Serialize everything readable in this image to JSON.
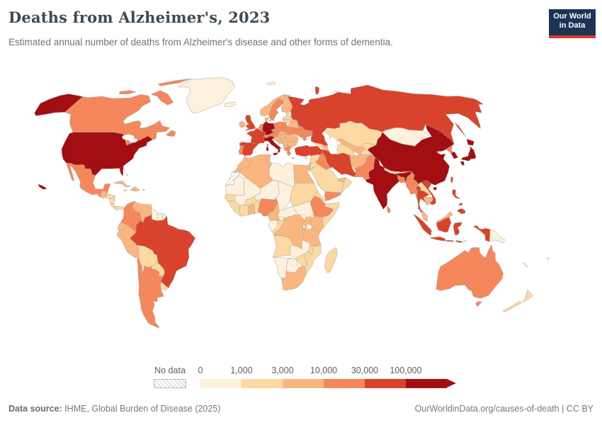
{
  "header": {
    "title": "Deaths from Alzheimer's, 2023",
    "subtitle": "Estimated annual number of deaths from Alzheimer's disease and other forms of dementia."
  },
  "logo": {
    "line1": "Our World",
    "line2": "in Data"
  },
  "legend": {
    "no_data_label": "No data",
    "tick_labels": [
      "0",
      "1,000",
      "3,000",
      "10,000",
      "30,000",
      "100,000"
    ]
  },
  "footer": {
    "source_label": "Data source:",
    "source_text": " IHME, Global Burden of Disease (2025)",
    "right_text": "OurWorldinData.org/causes-of-death | CC BY"
  },
  "chart_data": {
    "type": "choropleth",
    "title": "Deaths from Alzheimer's, 2023",
    "metric": "Estimated annual number of deaths from Alzheimer's disease and other forms of dementia",
    "year": 2023,
    "legend_position": "bottom",
    "bins": [
      {
        "range": "0–1,000",
        "color": "#fdf0dd"
      },
      {
        "range": "1,000–3,000",
        "color": "#fcd9a3"
      },
      {
        "range": "3,000–10,000",
        "color": "#fab67f"
      },
      {
        "range": "10,000–30,000",
        "color": "#f5875c"
      },
      {
        "range": "30,000–100,000",
        "color": "#d8432d"
      },
      {
        "range": "100,000+",
        "color": "#a30e13"
      }
    ],
    "countries": {
      "united-states": {
        "name": "United States",
        "bin": 5
      },
      "canada": {
        "name": "Canada",
        "bin": 3
      },
      "greenland": {
        "name": "Greenland",
        "bin": 0
      },
      "mexico": {
        "name": "Mexico",
        "bin": 3
      },
      "guatemala": {
        "name": "Guatemala",
        "bin": 2
      },
      "honduras": {
        "name": "Honduras",
        "bin": 1
      },
      "nicaragua": {
        "name": "Nicaragua",
        "bin": 1
      },
      "costa-rica": {
        "name": "Costa Rica",
        "bin": 1
      },
      "panama": {
        "name": "Panama",
        "bin": 1
      },
      "cuba": {
        "name": "Cuba",
        "bin": 2
      },
      "hispaniola": {
        "name": "Haiti / Dominican Republic",
        "bin": 2
      },
      "jamaica": {
        "name": "Jamaica",
        "bin": 1
      },
      "puerto-rico": {
        "name": "Puerto Rico",
        "bin": 2
      },
      "bahamas": {
        "name": "Bahamas",
        "bin": 1
      },
      "trinidad": {
        "name": "Trinidad and Tobago",
        "bin": 2
      },
      "colombia": {
        "name": "Colombia",
        "bin": 3
      },
      "venezuela": {
        "name": "Venezuela",
        "bin": 2
      },
      "guyana": {
        "name": "Guyana",
        "bin": 0
      },
      "suriname": {
        "name": "Suriname",
        "bin": 0
      },
      "french-guiana": {
        "name": "French Guiana",
        "bin": 0
      },
      "ecuador": {
        "name": "Ecuador",
        "bin": 2
      },
      "peru": {
        "name": "Peru",
        "bin": 2
      },
      "brazil": {
        "name": "Brazil",
        "bin": 4
      },
      "bolivia": {
        "name": "Bolivia",
        "bin": 1
      },
      "paraguay": {
        "name": "Paraguay",
        "bin": 1
      },
      "uruguay": {
        "name": "Uruguay",
        "bin": 1
      },
      "argentina": {
        "name": "Argentina",
        "bin": 3
      },
      "chile": {
        "name": "Chile",
        "bin": 3
      },
      "iceland": {
        "name": "Iceland",
        "bin": 0
      },
      "united-kingdom": {
        "name": "United Kingdom",
        "bin": 4
      },
      "ireland": {
        "name": "Ireland",
        "bin": 2
      },
      "norway": {
        "name": "Norway",
        "bin": 2
      },
      "sweden": {
        "name": "Sweden",
        "bin": 3
      },
      "finland": {
        "name": "Finland",
        "bin": 2
      },
      "denmark": {
        "name": "Denmark",
        "bin": 2
      },
      "estonia": {
        "name": "Estonia",
        "bin": 1
      },
      "latvia": {
        "name": "Latvia",
        "bin": 1
      },
      "lithuania": {
        "name": "Lithuania",
        "bin": 1
      },
      "poland": {
        "name": "Poland",
        "bin": 3
      },
      "germany": {
        "name": "Germany",
        "bin": 5
      },
      "netherlands": {
        "name": "Netherlands",
        "bin": 3
      },
      "belgium": {
        "name": "Belgium",
        "bin": 3
      },
      "france": {
        "name": "France",
        "bin": 4
      },
      "spain": {
        "name": "Spain",
        "bin": 4
      },
      "portugal": {
        "name": "Portugal",
        "bin": 3
      },
      "italy": {
        "name": "Italy",
        "bin": 5
      },
      "switzerland": {
        "name": "Switzerland",
        "bin": 3
      },
      "austria": {
        "name": "Austria",
        "bin": 3
      },
      "czechia": {
        "name": "Czechia",
        "bin": 3
      },
      "slovakia": {
        "name": "Slovakia",
        "bin": 2
      },
      "hungary": {
        "name": "Hungary",
        "bin": 2
      },
      "croatia": {
        "name": "Croatia",
        "bin": 2
      },
      "bosnia": {
        "name": "Bosnia and Herzegovina",
        "bin": 2
      },
      "serbia": {
        "name": "Serbia",
        "bin": 2
      },
      "albania-macedonia": {
        "name": "Albania / North Macedonia",
        "bin": 2
      },
      "greece": {
        "name": "Greece",
        "bin": 3
      },
      "bulgaria": {
        "name": "Bulgaria",
        "bin": 2
      },
      "romania": {
        "name": "Romania",
        "bin": 2
      },
      "ukraine": {
        "name": "Ukraine",
        "bin": 3
      },
      "moldova": {
        "name": "Moldova",
        "bin": 1
      },
      "belarus": {
        "name": "Belarus",
        "bin": 2
      },
      "russia": {
        "name": "Russia",
        "bin": 4
      },
      "svalbard": {
        "name": "Svalbard",
        "bin": 0
      },
      "georgia": {
        "name": "Georgia",
        "bin": 1
      },
      "armenia": {
        "name": "Armenia",
        "bin": 1
      },
      "azerbaijan": {
        "name": "Azerbaijan",
        "bin": 2
      },
      "turkey": {
        "name": "Turkey",
        "bin": 4
      },
      "syria": {
        "name": "Syria",
        "bin": 1
      },
      "jordan": {
        "name": "Jordan",
        "bin": 1
      },
      "israel": {
        "name": "Israel",
        "bin": 2
      },
      "iraq": {
        "name": "Iraq",
        "bin": 3
      },
      "iran": {
        "name": "Iran",
        "bin": 4
      },
      "saudi-arabia": {
        "name": "Saudi Arabia",
        "bin": 1
      },
      "yemen": {
        "name": "Yemen",
        "bin": 3
      },
      "oman": {
        "name": "Oman",
        "bin": 1
      },
      "uae": {
        "name": "United Arab Emirates",
        "bin": 2
      },
      "cyprus": {
        "name": "Cyprus",
        "bin": 1
      },
      "kazakhstan": {
        "name": "Kazakhstan",
        "bin": 1
      },
      "uzbekistan": {
        "name": "Uzbekistan",
        "bin": 2
      },
      "turkmenistan": {
        "name": "Turkmenistan",
        "bin": 1
      },
      "kyrgyzstan": {
        "name": "Kyrgyzstan",
        "bin": 1
      },
      "tajikistan": {
        "name": "Tajikistan",
        "bin": 1
      },
      "afghanistan": {
        "name": "Afghanistan",
        "bin": 2
      },
      "pakistan": {
        "name": "Pakistan",
        "bin": 3
      },
      "india": {
        "name": "India",
        "bin": 5
      },
      "nepal": {
        "name": "Nepal",
        "bin": 1
      },
      "bangladesh": {
        "name": "Bangladesh",
        "bin": 3
      },
      "sri-lanka": {
        "name": "Sri Lanka",
        "bin": 3
      },
      "china": {
        "name": "China",
        "bin": 5
      },
      "mongolia": {
        "name": "Mongolia",
        "bin": 0
      },
      "north-korea": {
        "name": "North Korea",
        "bin": 3
      },
      "south-korea": {
        "name": "South Korea",
        "bin": 5
      },
      "japan": {
        "name": "Japan",
        "bin": 5
      },
      "taiwan": {
        "name": "Taiwan",
        "bin": 4
      },
      "myanmar": {
        "name": "Myanmar",
        "bin": 3
      },
      "thailand": {
        "name": "Thailand",
        "bin": 4
      },
      "laos": {
        "name": "Laos",
        "bin": 1
      },
      "vietnam": {
        "name": "Vietnam",
        "bin": 4
      },
      "cambodia": {
        "name": "Cambodia",
        "bin": 2
      },
      "malaysia": {
        "name": "Malaysia",
        "bin": 2
      },
      "indonesia": {
        "name": "Indonesia",
        "bin": 4
      },
      "timor-leste": {
        "name": "Timor-Leste",
        "bin": 0
      },
      "philippines": {
        "name": "Philippines",
        "bin": 4
      },
      "papua-new-guinea": {
        "name": "Papua New Guinea",
        "bin": 0
      },
      "morocco": {
        "name": "Morocco",
        "bin": 2
      },
      "western-sahara": {
        "name": "Western Sahara",
        "bin": "nodata"
      },
      "algeria": {
        "name": "Algeria",
        "bin": 2
      },
      "tunisia": {
        "name": "Tunisia",
        "bin": 2
      },
      "libya": {
        "name": "Libya",
        "bin": 0
      },
      "egypt": {
        "name": "Egypt",
        "bin": 2
      },
      "sudan": {
        "name": "Sudan",
        "bin": 1
      },
      "south-sudan": {
        "name": "South Sudan",
        "bin": 0
      },
      "eritrea": {
        "name": "Eritrea / Djibouti",
        "bin": 1
      },
      "ethiopia": {
        "name": "Ethiopia",
        "bin": 3
      },
      "somalia": {
        "name": "Somalia",
        "bin": 1
      },
      "kenya": {
        "name": "Kenya",
        "bin": 2
      },
      "uganda": {
        "name": "Uganda",
        "bin": 2
      },
      "tanzania": {
        "name": "Tanzania",
        "bin": 2
      },
      "rwanda-burundi": {
        "name": "Rwanda / Burundi",
        "bin": 2
      },
      "dr-congo": {
        "name": "Democratic Republic of Congo",
        "bin": 2
      },
      "central-african-republic": {
        "name": "Central African Republic",
        "bin": 0
      },
      "chad": {
        "name": "Chad",
        "bin": 0
      },
      "niger": {
        "name": "Niger",
        "bin": 0
      },
      "mali": {
        "name": "Mali",
        "bin": 0
      },
      "mauritania": {
        "name": "Mauritania",
        "bin": 0
      },
      "senegal": {
        "name": "Senegal",
        "bin": 1
      },
      "guinea": {
        "name": "Guinea / Sierra Leone / Liberia",
        "bin": 1
      },
      "ivory-coast": {
        "name": "Cote d'Ivoire",
        "bin": 1
      },
      "ghana": {
        "name": "Ghana",
        "bin": 2
      },
      "benin-togo": {
        "name": "Benin / Togo",
        "bin": 1
      },
      "burkina-faso": {
        "name": "Burkina Faso",
        "bin": 1
      },
      "nigeria": {
        "name": "Nigeria",
        "bin": 3
      },
      "cameroon": {
        "name": "Cameroon",
        "bin": 2
      },
      "gabon": {
        "name": "Gabon",
        "bin": 0
      },
      "congo": {
        "name": "Congo",
        "bin": 1
      },
      "angola": {
        "name": "Angola",
        "bin": 1
      },
      "zambia": {
        "name": "Zambia",
        "bin": 0
      },
      "malawi": {
        "name": "Malawi",
        "bin": 1
      },
      "mozambique": {
        "name": "Mozambique",
        "bin": 1
      },
      "zimbabwe": {
        "name": "Zimbabwe",
        "bin": 1
      },
      "botswana": {
        "name": "Botswana",
        "bin": 0
      },
      "namibia": {
        "name": "Namibia",
        "bin": 0
      },
      "south-africa": {
        "name": "South Africa",
        "bin": 2
      },
      "madagascar": {
        "name": "Madagascar",
        "bin": 1
      },
      "australia": {
        "name": "Australia",
        "bin": 3
      },
      "new-zealand": {
        "name": "New Zealand",
        "bin": 1
      },
      "fiji": {
        "name": "Fiji",
        "bin": 0
      },
      "new-caledonia": {
        "name": "New Caledonia",
        "bin": 0
      }
    }
  }
}
